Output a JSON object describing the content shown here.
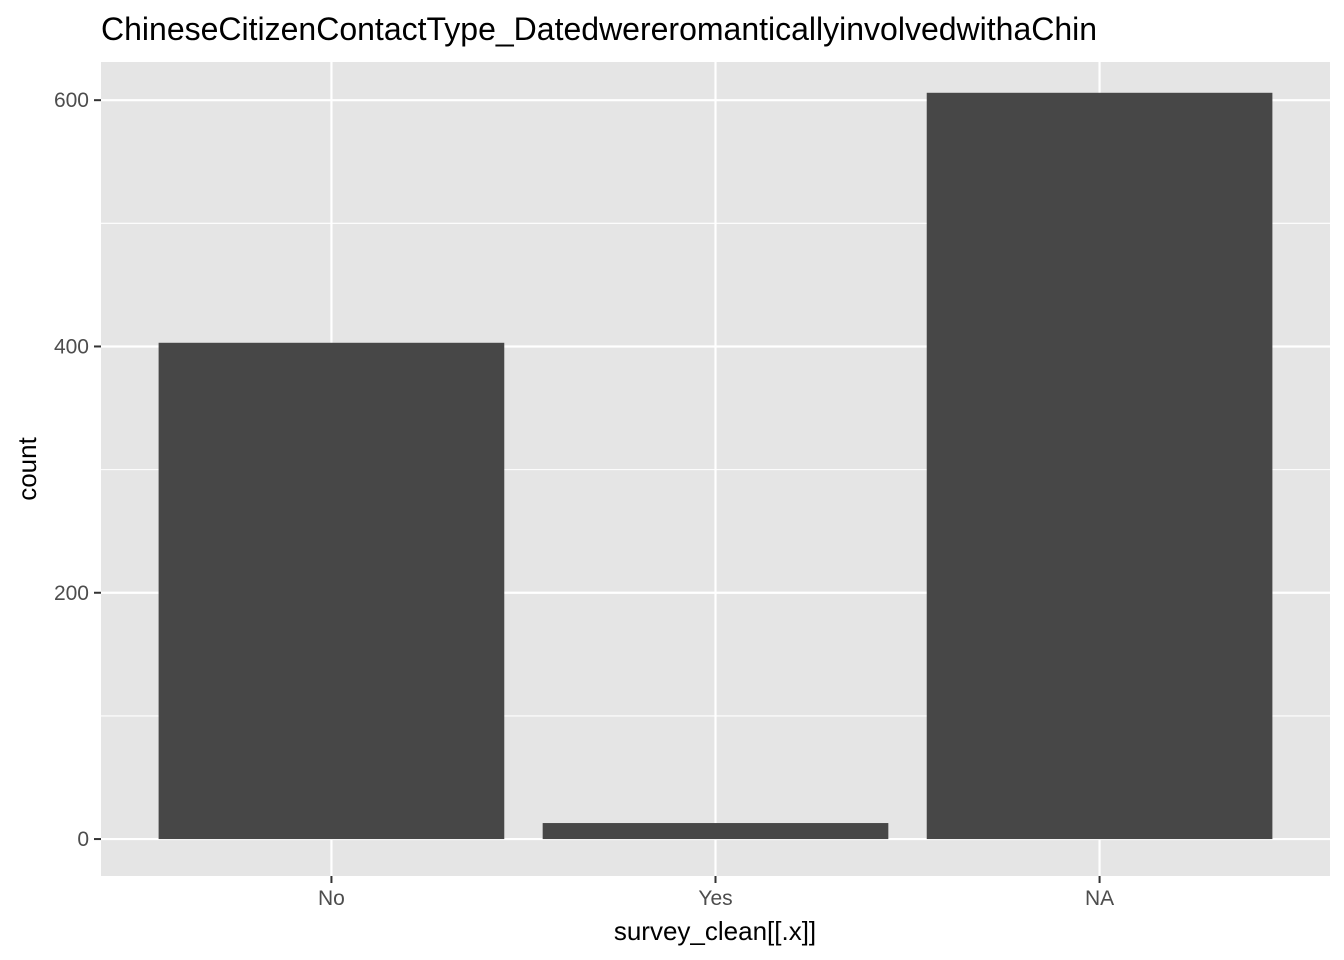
{
  "chart_data": {
    "type": "bar",
    "title": "ChineseCitizenContactType_DatedwereromanticallyinvolvedwithaChin",
    "xlabel": "survey_clean[[.x]]",
    "ylabel": "count",
    "categories": [
      "No",
      "Yes",
      "NA"
    ],
    "values": [
      403,
      13,
      606
    ],
    "ylim": [
      -30,
      631
    ],
    "y_ticks": [
      0,
      200,
      400,
      600
    ],
    "y_minor_ticks": [
      100,
      300,
      500
    ],
    "grid": true,
    "legend": "none",
    "colors": {
      "bar": "#474747",
      "panel": "#e5e5e5",
      "grid": "#ffffff",
      "tick_text": "#4d4d4d",
      "tick_mark": "#333333"
    }
  }
}
